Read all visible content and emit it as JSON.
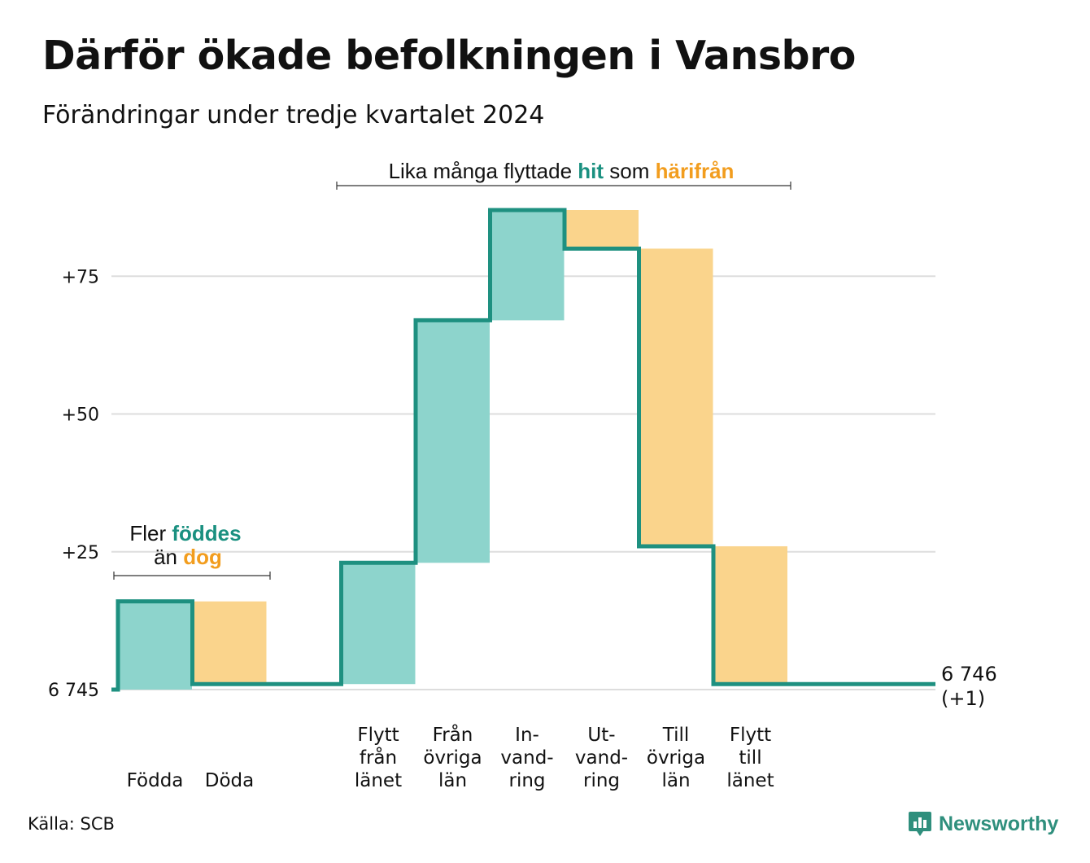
{
  "title": "Därför ökade befolkningen i Vansbro",
  "subtitle": "Förändringar under tredje kvartalet 2024",
  "source": "Källa: SCB",
  "brand": "Newsworthy",
  "colors": {
    "inflow": "#8dd4cc",
    "outflow": "#fad48c",
    "line": "#1e9080",
    "accent_teal": "#1a9080",
    "accent_orange": "#f29d1e",
    "grid": "#dddddd"
  },
  "annotations": {
    "births": {
      "line1_a": "Fler ",
      "line1_b": "föddes",
      "line2_a": "än ",
      "line2_b": "dog"
    },
    "migration": {
      "part1": "Lika många flyttade ",
      "part2": "hit",
      "part3": " som ",
      "part4": "härifrån"
    }
  },
  "chart_data": {
    "type": "waterfall",
    "baseline_label": "6 745",
    "y_ticks": [
      {
        "value": 25,
        "label": "+25"
      },
      {
        "value": 50,
        "label": "+50"
      },
      {
        "value": 75,
        "label": "+75"
      }
    ],
    "categories": [
      {
        "label": [
          "Födda"
        ],
        "change": 16,
        "kind": "inflow"
      },
      {
        "label": [
          "Döda"
        ],
        "change": -15,
        "kind": "outflow"
      },
      {
        "label": [],
        "change": 0,
        "kind": "none"
      },
      {
        "label": [
          "Flytt",
          "från",
          "länet"
        ],
        "change": 22,
        "kind": "inflow"
      },
      {
        "label": [
          "Från",
          "övriga",
          "län"
        ],
        "change": 44,
        "kind": "inflow"
      },
      {
        "label": [
          "In-",
          "vand-",
          "ring"
        ],
        "change": 20,
        "kind": "inflow"
      },
      {
        "label": [
          "Ut-",
          "vand-",
          "ring"
        ],
        "change": -7,
        "kind": "outflow"
      },
      {
        "label": [
          "Till",
          "övriga",
          "län"
        ],
        "change": -54,
        "kind": "outflow"
      },
      {
        "label": [
          "Flytt",
          "till",
          "länet"
        ],
        "change": -25,
        "kind": "outflow"
      },
      {
        "label": [],
        "change": 0,
        "kind": "none"
      }
    ],
    "end_label": [
      "6 746",
      "(+1)"
    ]
  }
}
